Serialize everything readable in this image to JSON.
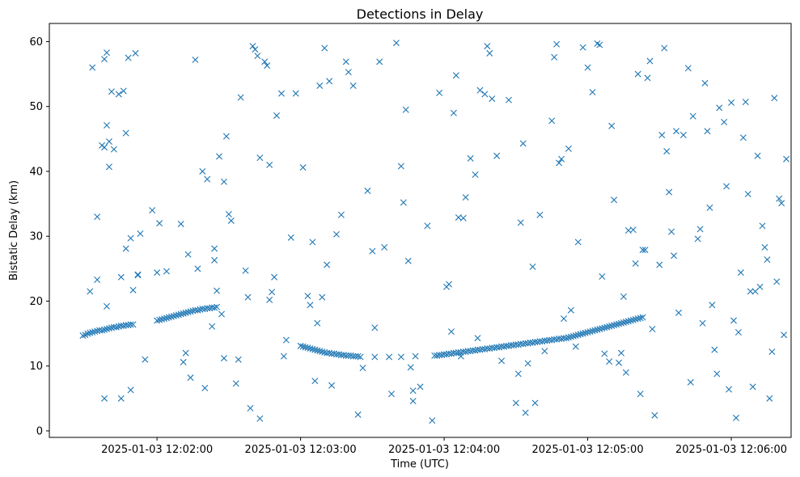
{
  "chart_data": {
    "type": "scatter",
    "title": "Detections in Delay",
    "xlabel": "Time (UTC)",
    "ylabel": "Bistatic Delay (km)",
    "marker": "x",
    "color": "#1f77b4",
    "grid": false,
    "xlim": [
      "2025-01-03T12:01:15",
      "2025-01-03T12:06:25"
    ],
    "ylim": [
      -1,
      62.8
    ],
    "xticks": [
      {
        "t": "2025-01-03T12:02:00",
        "label": "2025-01-03 12:02:00"
      },
      {
        "t": "2025-01-03T12:03:00",
        "label": "2025-01-03 12:03:00"
      },
      {
        "t": "2025-01-03T12:04:00",
        "label": "2025-01-03 12:04:00"
      },
      {
        "t": "2025-01-03T12:05:00",
        "label": "2025-01-03 12:05:00"
      },
      {
        "t": "2025-01-03T12:06:00",
        "label": "2025-01-03 12:06:00"
      }
    ],
    "yticks": [
      0,
      10,
      20,
      30,
      40,
      50,
      60
    ],
    "series": [
      {
        "points_t": [
          "12:01:29",
          "12:01:30",
          "12:01:31",
          "12:01:32",
          "12:01:33",
          "12:01:34",
          "12:01:35",
          "12:01:36",
          "12:01:37",
          "12:01:38",
          "12:01:39",
          "12:01:40",
          "12:01:41",
          "12:01:42",
          "12:01:43",
          "12:01:44",
          "12:01:45",
          "12:01:46",
          "12:01:47",
          "12:01:48",
          "12:01:49",
          "12:01:50",
          "12:02:00",
          "12:02:01",
          "12:02:02",
          "12:02:03",
          "12:02:04",
          "12:02:05",
          "12:02:06",
          "12:02:07",
          "12:02:08",
          "12:02:09",
          "12:02:10",
          "12:02:11",
          "12:02:12",
          "12:02:13",
          "12:02:14",
          "12:02:15",
          "12:02:16",
          "12:02:17",
          "12:02:18",
          "12:02:19",
          "12:02:20",
          "12:02:21",
          "12:02:22",
          "12:02:23",
          "12:02:24",
          "12:02:25",
          "12:03:00",
          "12:03:01",
          "12:03:02",
          "12:03:03",
          "12:03:04",
          "12:03:05",
          "12:03:06",
          "12:03:07",
          "12:03:08",
          "12:03:09",
          "12:03:10",
          "12:03:11",
          "12:03:12",
          "12:03:13",
          "12:03:14",
          "12:03:15",
          "12:03:16",
          "12:03:17",
          "12:03:18",
          "12:03:19",
          "12:03:20",
          "12:03:21",
          "12:03:22",
          "12:03:23",
          "12:03:24",
          "12:03:25",
          "12:03:31",
          "12:03:37",
          "12:03:42",
          "12:03:48",
          "12:03:56",
          "12:03:57",
          "12:03:58",
          "12:03:59",
          "12:04:00",
          "12:04:01",
          "12:04:02",
          "12:04:03",
          "12:04:04",
          "12:04:05",
          "12:04:06",
          "12:04:07",
          "12:04:08",
          "12:04:09",
          "12:04:10",
          "12:04:11",
          "12:04:12",
          "12:04:13",
          "12:04:14",
          "12:04:15",
          "12:04:16",
          "12:04:17",
          "12:04:18",
          "12:04:19",
          "12:04:20",
          "12:04:21",
          "12:04:22",
          "12:04:23",
          "12:04:24",
          "12:04:25",
          "12:04:26",
          "12:04:27",
          "12:04:28",
          "12:04:29",
          "12:04:30",
          "12:04:31",
          "12:04:32",
          "12:04:33",
          "12:04:34",
          "12:04:35",
          "12:04:36",
          "12:04:37",
          "12:04:38",
          "12:04:39",
          "12:04:40",
          "12:04:41",
          "12:04:42",
          "12:04:43",
          "12:04:44",
          "12:04:45",
          "12:04:46",
          "12:04:47",
          "12:04:48",
          "12:04:49",
          "12:04:50",
          "12:04:51",
          "12:04:52",
          "12:04:53",
          "12:04:54",
          "12:04:55",
          "12:04:56",
          "12:04:57",
          "12:04:58",
          "12:04:59",
          "12:05:00",
          "12:05:01",
          "12:05:02",
          "12:05:03",
          "12:05:04",
          "12:05:05",
          "12:05:06",
          "12:05:07",
          "12:05:08",
          "12:05:09",
          "12:05:10",
          "12:05:11",
          "12:05:12",
          "12:05:13",
          "12:05:14",
          "12:05:15",
          "12:05:16",
          "12:05:17",
          "12:05:18",
          "12:05:19",
          "12:05:20",
          "12:05:21",
          "12:05:22",
          "12:05:23",
          "12:01:32",
          "12:01:33",
          "12:01:35",
          "12:01:35",
          "12:01:37",
          "12:01:38",
          "12:01:38",
          "12:01:38",
          "12:01:39",
          "12:01:39",
          "12:01:39",
          "12:01:40",
          "12:01:40",
          "12:01:41",
          "12:01:42",
          "12:01:44",
          "12:01:45",
          "12:01:45",
          "12:01:46",
          "12:01:47",
          "12:01:47",
          "12:01:48",
          "12:01:49",
          "12:01:49",
          "12:01:50",
          "12:01:51",
          "12:01:52",
          "12:01:52",
          "12:01:53",
          "12:01:55",
          "12:01:58",
          "12:02:00",
          "12:02:01",
          "12:02:04",
          "12:02:10",
          "12:02:11",
          "12:02:12",
          "12:02:13",
          "12:02:14",
          "12:02:16",
          "12:02:17",
          "12:02:19",
          "12:02:20",
          "12:02:21",
          "12:02:23",
          "12:02:24",
          "12:02:24",
          "12:02:25",
          "12:02:26",
          "12:02:27",
          "12:02:28",
          "12:02:28",
          "12:02:29",
          "12:02:30",
          "12:02:31",
          "12:02:33",
          "12:02:34",
          "12:02:35",
          "12:02:37",
          "12:02:38",
          "12:02:39",
          "12:02:40",
          "12:02:41",
          "12:02:42",
          "12:02:43",
          "12:02:43",
          "12:02:45",
          "12:02:46",
          "12:02:47",
          "12:02:47",
          "12:02:48",
          "12:02:49",
          "12:02:50",
          "12:02:52",
          "12:02:53",
          "12:02:54",
          "12:02:56",
          "12:02:58",
          "12:03:01",
          "12:03:03",
          "12:03:04",
          "12:03:05",
          "12:03:06",
          "12:03:07",
          "12:03:08",
          "12:03:09",
          "12:03:10",
          "12:03:11",
          "12:03:12",
          "12:03:13",
          "12:03:15",
          "12:03:17",
          "12:03:19",
          "12:03:20",
          "12:03:22",
          "12:03:24",
          "12:03:26",
          "12:03:28",
          "12:03:30",
          "12:03:31",
          "12:03:33",
          "12:03:35",
          "12:03:38",
          "12:03:40",
          "12:03:42",
          "12:03:43",
          "12:03:44",
          "12:03:45",
          "12:03:46",
          "12:03:47",
          "12:03:47",
          "12:03:50",
          "12:03:53",
          "12:03:55",
          "12:03:58",
          "12:04:01",
          "12:04:02",
          "12:04:03",
          "12:04:04",
          "12:04:05",
          "12:04:06",
          "12:04:07",
          "12:04:08",
          "12:04:09",
          "12:04:11",
          "12:04:13",
          "12:04:14",
          "12:04:15",
          "12:04:17",
          "12:04:18",
          "12:04:19",
          "12:04:20",
          "12:04:22",
          "12:04:24",
          "12:04:27",
          "12:04:30",
          "12:04:31",
          "12:04:32",
          "12:04:33",
          "12:04:34",
          "12:04:35",
          "12:04:37",
          "12:04:38",
          "12:04:40",
          "12:04:42",
          "12:04:45",
          "12:04:46",
          "12:04:47",
          "12:04:48",
          "12:04:49",
          "12:04:50",
          "12:04:52",
          "12:04:53",
          "12:04:55",
          "12:04:56",
          "12:04:58",
          "12:05:00",
          "12:05:02",
          "12:05:04",
          "12:05:05",
          "12:05:06",
          "12:05:07",
          "12:05:09",
          "12:05:10",
          "12:05:11",
          "12:05:13",
          "12:05:14",
          "12:05:15",
          "12:05:16",
          "12:05:17",
          "12:05:19",
          "12:05:20",
          "12:05:21",
          "12:05:22",
          "12:05:23",
          "12:05:24",
          "12:05:25",
          "12:05:26",
          "12:05:27",
          "12:05:28",
          "12:05:30",
          "12:05:31",
          "12:05:32",
          "12:05:33",
          "12:05:34",
          "12:05:35",
          "12:05:36",
          "12:05:37",
          "12:05:38",
          "12:05:40",
          "12:05:42",
          "12:05:43",
          "12:05:44",
          "12:05:46",
          "12:05:47",
          "12:05:48",
          "12:05:49",
          "12:05:50",
          "12:05:51",
          "12:05:52",
          "12:05:53",
          "12:05:54",
          "12:05:55",
          "12:05:57",
          "12:05:58",
          "12:05:59",
          "12:06:00",
          "12:06:01",
          "12:06:02",
          "12:06:03",
          "12:06:04",
          "12:06:05",
          "12:06:06",
          "12:06:07",
          "12:06:08",
          "12:06:09",
          "12:06:10",
          "12:06:11",
          "12:06:12",
          "12:06:13",
          "12:06:14",
          "12:06:15",
          "12:06:16",
          "12:06:17",
          "12:06:18",
          "12:06:19",
          "12:06:20",
          "12:06:21",
          "12:06:22",
          "12:06:23"
        ],
        "points_y": [
          14.7,
          14.8,
          15.0,
          15.1,
          15.2,
          15.3,
          15.4,
          15.5,
          15.5,
          15.6,
          15.7,
          15.8,
          15.9,
          16.0,
          16.0,
          16.1,
          16.2,
          16.2,
          16.3,
          16.3,
          16.4,
          16.4,
          17.0,
          17.1,
          17.2,
          17.3,
          17.4,
          17.5,
          17.6,
          17.7,
          17.8,
          17.9,
          18.0,
          18.1,
          18.2,
          18.3,
          18.4,
          18.5,
          18.6,
          18.6,
          18.7,
          18.8,
          18.8,
          18.9,
          18.9,
          19.0,
          19.0,
          19.1,
          13.1,
          13.0,
          12.9,
          12.8,
          12.7,
          12.6,
          12.5,
          12.4,
          12.3,
          12.2,
          12.1,
          12.0,
          12.0,
          11.9,
          11.9,
          11.8,
          11.8,
          11.7,
          11.7,
          11.6,
          11.6,
          11.6,
          11.5,
          11.5,
          11.5,
          11.4,
          11.4,
          11.4,
          11.4,
          11.5,
          11.6,
          11.6,
          11.7,
          11.7,
          11.8,
          11.8,
          11.9,
          11.9,
          12.0,
          12.0,
          12.1,
          12.1,
          12.2,
          12.2,
          12.3,
          12.3,
          12.4,
          12.4,
          12.5,
          12.5,
          12.6,
          12.6,
          12.7,
          12.7,
          12.8,
          12.8,
          12.9,
          12.9,
          13.0,
          13.0,
          13.1,
          13.1,
          13.2,
          13.2,
          13.3,
          13.3,
          13.4,
          13.4,
          13.5,
          13.5,
          13.6,
          13.6,
          13.7,
          13.7,
          13.8,
          13.8,
          13.9,
          13.9,
          14.0,
          14.0,
          14.1,
          14.1,
          14.2,
          14.2,
          14.3,
          14.3,
          14.4,
          14.5,
          14.6,
          14.7,
          14.8,
          14.9,
          15.0,
          15.1,
          15.2,
          15.3,
          15.4,
          15.5,
          15.6,
          15.7,
          15.8,
          15.9,
          16.0,
          16.1,
          16.2,
          16.3,
          16.4,
          16.5,
          16.6,
          16.7,
          16.8,
          16.9,
          17.0,
          17.1,
          17.2,
          17.3,
          17.4,
          17.5,
          21.5,
          56.0,
          23.3,
          33.0,
          44.0,
          5.0,
          57.3,
          43.7,
          58.3,
          19.2,
          47.1,
          44.6,
          40.7,
          52.3,
          43.4,
          51.9,
          23.7,
          5.0,
          52.4,
          45.9,
          28.1,
          57.5,
          6.3,
          29.7,
          21.7,
          58.2,
          24.0,
          24.1,
          30.4,
          11.0,
          34.0,
          24.4,
          32.0,
          24.6,
          31.9,
          10.6,
          12.0,
          27.2,
          8.2,
          57.2,
          25.0,
          40.0,
          6.6,
          38.8,
          16.1,
          28.1,
          26.3,
          21.6,
          42.3,
          18.0,
          38.4,
          11.2,
          45.4,
          33.4,
          32.4,
          7.3,
          11.0,
          51.4,
          24.7,
          20.6,
          3.5,
          59.3,
          58.8,
          57.8,
          1.9,
          42.1,
          56.9,
          56.3,
          41.0,
          20.2,
          21.4,
          23.7,
          48.6,
          52.0,
          11.5,
          14.0,
          29.8,
          52.0,
          40.6,
          20.8,
          19.4,
          29.1,
          7.7,
          16.6,
          53.2,
          20.6,
          59.0,
          25.6,
          53.9,
          7.0,
          30.3,
          33.3,
          56.9,
          55.3,
          53.2,
          2.5,
          9.7,
          37.0,
          27.7,
          15.9,
          56.9,
          28.3,
          5.7,
          59.8,
          40.8,
          35.2,
          49.5,
          26.2,
          9.8,
          6.2,
          4.6,
          6.8,
          31.6,
          1.6,
          52.1,
          22.2,
          22.6,
          15.3,
          49.0,
          54.8,
          32.9,
          11.5,
          32.8,
          36.0,
          42.0,
          39.5,
          14.3,
          52.5,
          51.9,
          59.3,
          58.2,
          51.2,
          42.4,
          10.8,
          51.0,
          4.3,
          8.8,
          32.1,
          44.3,
          2.8,
          10.4,
          25.3,
          4.3,
          33.3,
          12.3,
          47.8,
          57.6,
          59.6,
          41.3,
          41.9,
          17.3,
          43.5,
          18.6,
          13.0,
          29.1,
          59.1,
          56.0,
          52.2,
          59.7,
          59.5,
          23.8,
          11.9,
          10.7,
          47.0,
          35.6,
          10.5,
          12.0,
          20.7,
          9.0,
          30.9,
          31.0,
          25.8,
          55.0,
          5.7,
          27.9,
          27.9,
          54.4,
          57.0,
          15.7,
          2.4,
          25.6,
          45.6,
          59.0,
          43.1,
          36.8,
          30.7,
          27.0,
          46.2,
          18.2,
          45.6,
          55.9,
          7.5,
          48.5,
          29.6,
          31.1,
          16.6,
          53.6,
          46.2,
          34.4,
          19.4,
          12.5,
          8.8,
          49.8,
          47.6,
          37.7,
          6.4,
          50.6,
          17.0,
          2.0,
          15.2,
          24.4,
          45.2,
          50.7,
          36.5,
          21.5,
          6.8,
          21.5,
          42.4,
          22.2,
          31.6,
          28.3,
          26.4,
          5.0,
          12.2,
          51.3,
          23.0,
          35.8,
          35.1,
          14.8,
          41.9,
          23.1,
          15.8,
          6.2,
          4.3,
          23.4,
          16.7,
          1.5,
          58.2,
          29.2,
          46.6,
          58.8,
          22.1,
          23.9,
          9.4,
          16.5,
          23.9,
          29.3,
          50.6
        ]
      }
    ]
  }
}
